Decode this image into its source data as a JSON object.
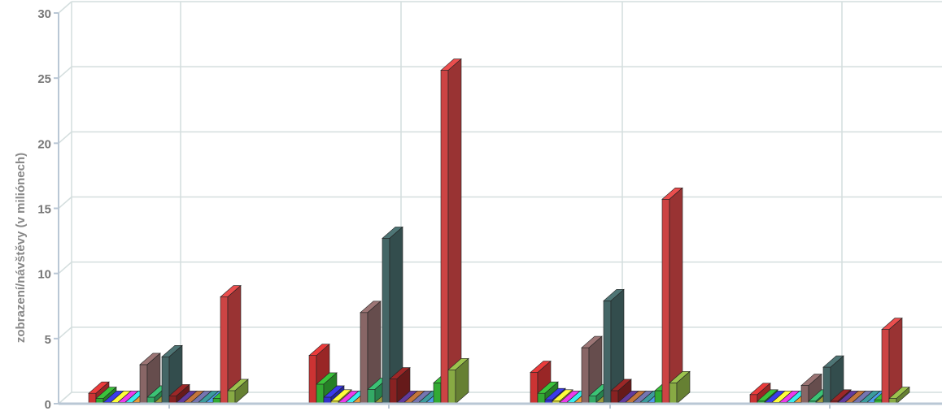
{
  "chart_data": {
    "type": "bar",
    "title": "",
    "xlabel": "",
    "ylabel": "zobrazení/návštěvy (v miliónech)",
    "ylim": [
      0,
      30
    ],
    "yticks": [
      "0",
      "5",
      "10",
      "15",
      "20",
      "25",
      "30"
    ],
    "grid": true,
    "groups": 4,
    "series": [
      {
        "color": "#cc3333",
        "values": [
          0.8,
          3.7,
          2.4,
          0.7
        ]
      },
      {
        "color": "#33aa33",
        "values": [
          0.4,
          1.5,
          0.8,
          0.2
        ]
      },
      {
        "color": "#3333cc",
        "values": [
          0.1,
          0.5,
          0.3,
          0.1
        ]
      },
      {
        "color": "#dddd33",
        "values": [
          0.1,
          0.2,
          0.2,
          0.1
        ]
      },
      {
        "color": "#cc33cc",
        "values": [
          0.1,
          0.1,
          0.1,
          0.1
        ]
      },
      {
        "color": "#33cccc",
        "values": [
          0.1,
          0.1,
          0.1,
          0.1
        ]
      },
      {
        "color": "#cc8833",
        "values": [
          0.1,
          0.1,
          0.1,
          0.1
        ]
      },
      {
        "color": "#886666",
        "values": [
          3.0,
          7.0,
          4.3,
          1.4
        ]
      },
      {
        "color": "#33aa66",
        "values": [
          0.5,
          1.1,
          0.6,
          0.2
        ]
      },
      {
        "color": "#888833",
        "values": [
          0.1,
          0.1,
          0.1,
          0.1
        ]
      },
      {
        "color": "#446666",
        "values": [
          3.6,
          12.7,
          7.9,
          2.8
        ]
      },
      {
        "color": "#882222",
        "values": [
          0.6,
          1.9,
          1.0,
          0.2
        ]
      },
      {
        "color": "#553388",
        "values": [
          0.1,
          0.1,
          0.1,
          0.1
        ]
      },
      {
        "color": "#aa6633",
        "values": [
          0.1,
          0.1,
          0.1,
          0.1
        ]
      },
      {
        "color": "#666699",
        "values": [
          0.1,
          0.1,
          0.1,
          0.1
        ]
      },
      {
        "color": "#338888",
        "values": [
          0.1,
          0.1,
          0.1,
          0.1
        ]
      },
      {
        "color": "#4488cc",
        "values": [
          0.1,
          0.1,
          0.1,
          0.1
        ]
      },
      {
        "color": "#33aa33",
        "values": [
          0.4,
          1.6,
          1.0,
          0.3
        ]
      },
      {
        "color": "#cc4444",
        "values": [
          8.2,
          25.6,
          15.7,
          5.7
        ]
      },
      {
        "color": "#88aa44",
        "values": [
          1.0,
          2.6,
          1.6,
          0.4
        ]
      }
    ]
  }
}
